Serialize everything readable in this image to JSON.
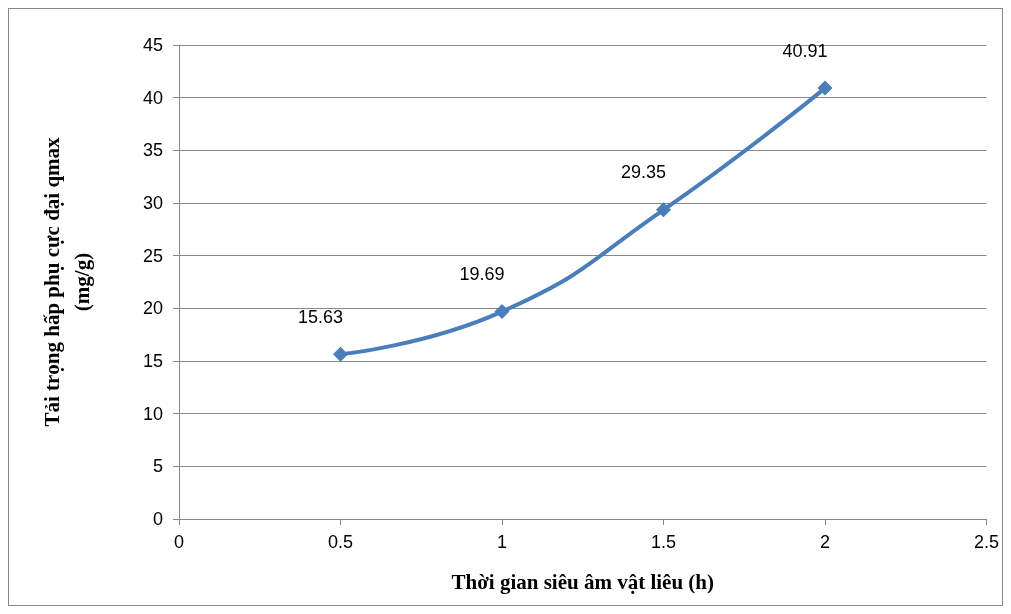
{
  "chart_data": {
    "type": "line",
    "xlabel": "Thời gian siêu âm vật liêu (h)",
    "ylabel": "Tải trọng hấp phụ cực đại qmax\n(mg/g)",
    "x": [
      0.5,
      1,
      1.5,
      2
    ],
    "series": [
      {
        "color": "#4a7ebb",
        "values": [
          15.63,
          19.69,
          29.35,
          40.91
        ]
      }
    ],
    "xlim": [
      0,
      2.5
    ],
    "xticks": [
      0,
      0.5,
      1,
      1.5,
      2,
      2.5
    ],
    "ylim": [
      0,
      45
    ],
    "yticks": [
      0,
      5,
      10,
      15,
      20,
      25,
      30,
      35,
      40,
      45
    ],
    "grid": "y",
    "marker": "diamond",
    "line_style": "solid",
    "data_labels": true
  }
}
